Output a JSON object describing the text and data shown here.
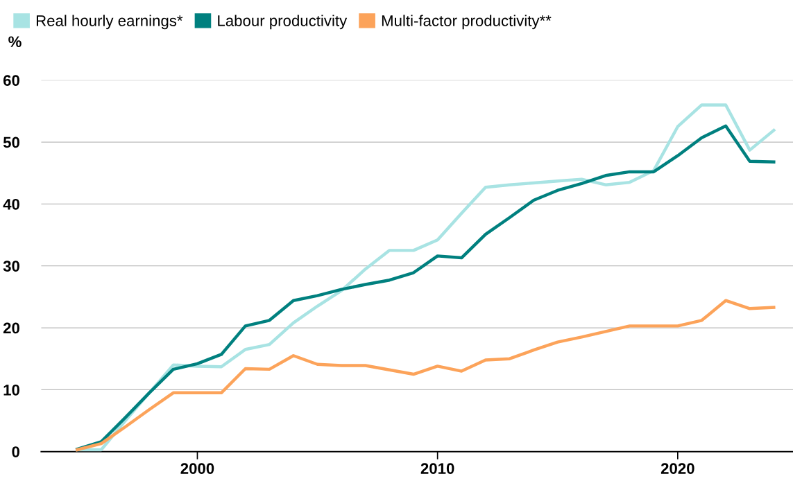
{
  "chart_data": {
    "type": "line",
    "ylabel": "%",
    "x": [
      1995,
      1996,
      1997,
      1998,
      1999,
      2000,
      2001,
      2002,
      2003,
      2004,
      2005,
      2006,
      2007,
      2008,
      2009,
      2010,
      2011,
      2012,
      2013,
      2014,
      2015,
      2016,
      2017,
      2018,
      2019,
      2020,
      2021,
      2022,
      2023,
      2024
    ],
    "series": [
      {
        "name": "Real hourly earnings*",
        "color": "#a8e3e3",
        "values": [
          0.3,
          0.3,
          5,
          9.5,
          14,
          13.8,
          13.7,
          16.5,
          17.3,
          20.8,
          23.5,
          26,
          29.5,
          32.5,
          32.5,
          34.2,
          38.5,
          42.7,
          43.1,
          43.4,
          43.7,
          44,
          43.1,
          43.5,
          45.4,
          52.5,
          56,
          56,
          48.7,
          51.9
        ]
      },
      {
        "name": "Labour productivity",
        "color": "#00807f",
        "values": [
          0.4,
          1.6,
          5.5,
          9.5,
          13.3,
          14.2,
          15.7,
          20.3,
          21.2,
          24.4,
          25.2,
          26.2,
          27,
          27.7,
          28.9,
          31.6,
          31.3,
          35.1,
          37.8,
          40.6,
          42.2,
          43.3,
          44.6,
          45.2,
          45.2,
          47.8,
          50.7,
          52.6,
          46.9,
          46.8
        ]
      },
      {
        "name": "Multi-factor productivity**",
        "color": "#fca35a",
        "values": [
          0.3,
          1.3,
          4,
          6.8,
          9.5,
          9.5,
          9.5,
          13.4,
          13.3,
          15.5,
          14.1,
          13.9,
          13.9,
          13.2,
          12.5,
          13.8,
          13.0,
          14.8,
          15.0,
          16.4,
          17.7,
          18.5,
          19.4,
          20.3,
          20.3,
          20.3,
          21.2,
          24.4,
          23.1,
          23.3
        ]
      }
    ],
    "xlim": [
      1993.5,
      2024.8
    ],
    "xticks": [
      2000,
      2010,
      2020
    ],
    "ylim": [
      0,
      60
    ],
    "yticks": [
      0,
      10,
      20,
      30,
      40,
      50,
      60
    ],
    "grid": "y",
    "legend": "top left",
    "marker": "none",
    "line_style": "solid"
  }
}
